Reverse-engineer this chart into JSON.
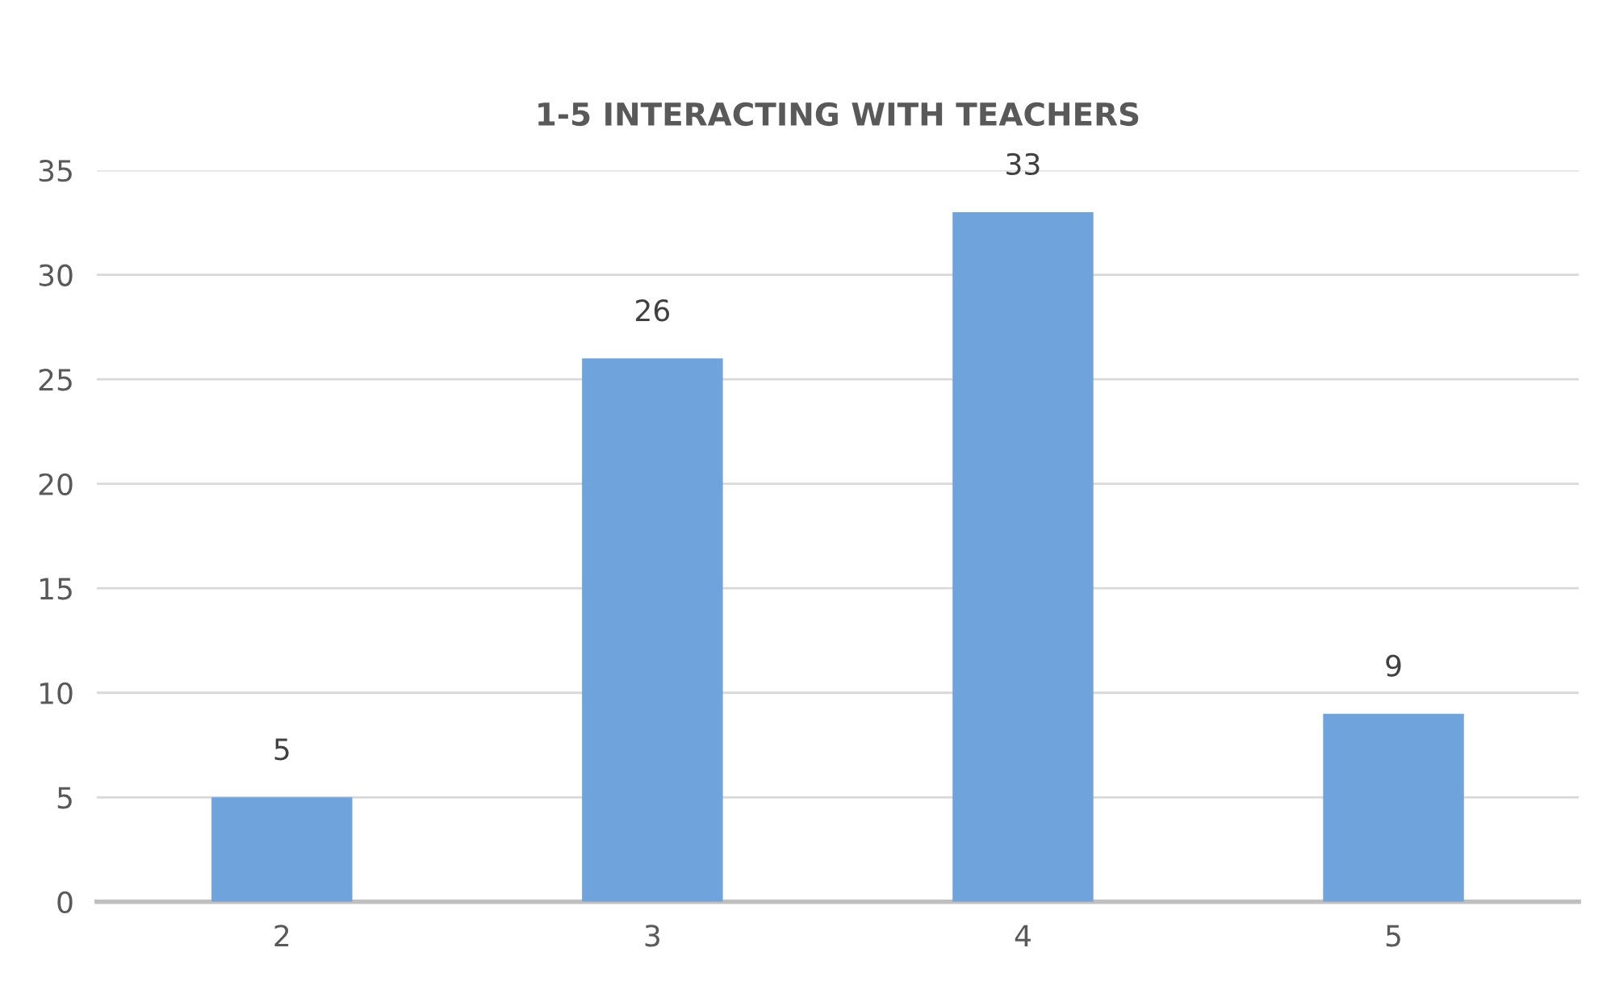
{
  "chart_data": {
    "type": "bar",
    "title": "1-5 INTERACTING WITH TEACHERS",
    "categories": [
      "2",
      "3",
      "4",
      "5"
    ],
    "values": [
      5,
      26,
      33,
      9
    ],
    "color": "#6fa3dc",
    "ylim": [
      0,
      35
    ],
    "yticks": [
      0,
      5,
      10,
      15,
      20,
      25,
      30,
      35
    ],
    "grid": "y",
    "data_labels": true
  }
}
